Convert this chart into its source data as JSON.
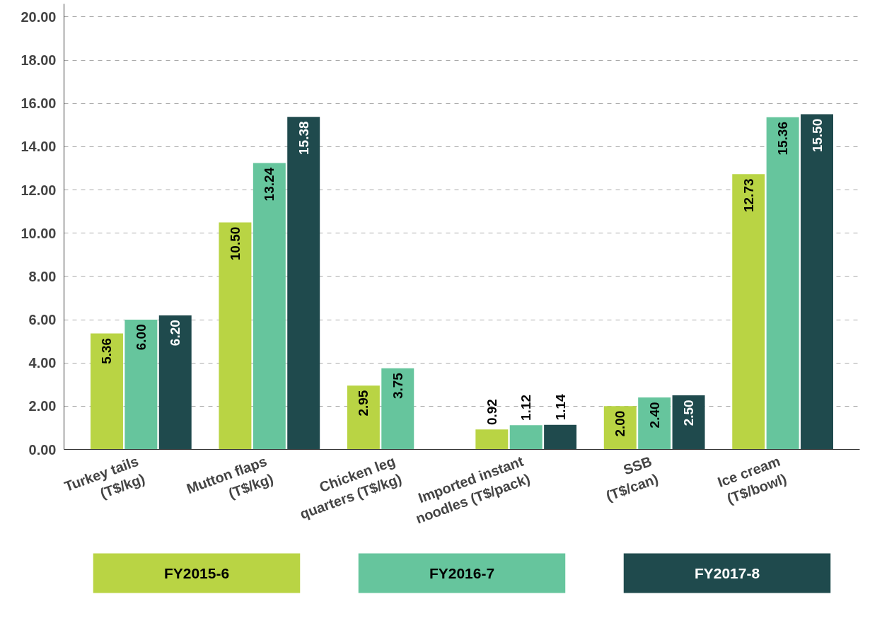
{
  "chart_data": {
    "type": "bar",
    "categories": [
      "Turkey tails\n(T$/kg)",
      "Mutton flaps\n(T$/kg)",
      "Chicken leg\nquarters (T$/kg)",
      "Imported instant\nnoodles (T$/pack)",
      "SSB\n(T$/can)",
      "Ice cream\n(T$/bowl)"
    ],
    "series": [
      {
        "name": "FY2015-6",
        "color": "#b9d444",
        "values": [
          5.36,
          10.5,
          2.95,
          0.92,
          2.0,
          12.73
        ],
        "value_labels": [
          "5.36",
          "10.50",
          "2.95",
          "0.92",
          "2.00",
          "12.73"
        ]
      },
      {
        "name": "FY2016-7",
        "color": "#66c59d",
        "values": [
          6.0,
          13.24,
          3.75,
          1.12,
          2.4,
          15.36
        ],
        "value_labels": [
          "6.00",
          "13.24",
          "3.75",
          "1.12",
          "2.40",
          "15.36"
        ]
      },
      {
        "name": "FY2017-8",
        "color": "#1f4a4d",
        "values": [
          6.2,
          15.38,
          null,
          1.14,
          2.5,
          15.5
        ],
        "value_labels": [
          "6.20",
          "15.38",
          null,
          "1.14",
          "2.50",
          "15.50"
        ]
      }
    ],
    "ylim": [
      0,
      20.6
    ],
    "yticks": [
      {
        "value": 0,
        "label": "0.00"
      },
      {
        "value": 2,
        "label": "2.00"
      },
      {
        "value": 4,
        "label": "4.00"
      },
      {
        "value": 6,
        "label": "6.00"
      },
      {
        "value": 8,
        "label": "8.00"
      },
      {
        "value": 10,
        "label": "10.00"
      },
      {
        "value": 12,
        "label": "12.00"
      },
      {
        "value": 14,
        "label": "14.00"
      },
      {
        "value": 16,
        "label": "16.00"
      },
      {
        "value": 18,
        "label": "18.00"
      },
      {
        "value": 20,
        "label": "20.00"
      }
    ],
    "grid": "y",
    "legend": "bottom"
  }
}
